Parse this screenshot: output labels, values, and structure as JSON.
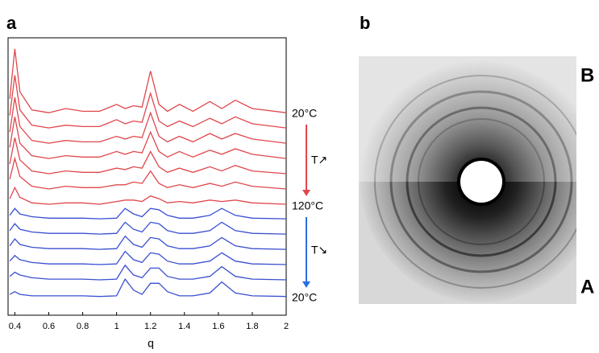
{
  "chart_data": {
    "type": "line",
    "panel_label": "a",
    "x_label": "q",
    "x": [
      0.37,
      0.4,
      0.43,
      0.5,
      0.6,
      0.7,
      0.8,
      0.9,
      1.0,
      1.05,
      1.1,
      1.15,
      1.2,
      1.25,
      1.3,
      1.37,
      1.45,
      1.55,
      1.62,
      1.7,
      1.8,
      2.0
    ],
    "xlim": [
      0.36,
      2.0
    ],
    "xticks": [
      0.4,
      0.6,
      0.8,
      1,
      1.2,
      1.4,
      1.6,
      1.8,
      2
    ],
    "ylim": [
      0,
      20
    ],
    "series": [
      {
        "color": "#e0474c",
        "values": [
          15.6,
          19.2,
          16.1,
          14.8,
          14.6,
          14.9,
          14.7,
          14.7,
          15.2,
          14.9,
          15.1,
          15.0,
          17.6,
          15.2,
          14.7,
          15.2,
          14.7,
          15.4,
          14.9,
          15.5,
          14.9,
          14.6
        ]
      },
      {
        "color": "#e0474c",
        "values": [
          14.4,
          17.3,
          14.8,
          13.7,
          13.5,
          13.7,
          13.6,
          13.6,
          14.1,
          13.8,
          14.0,
          13.9,
          16.0,
          14.0,
          13.6,
          14.0,
          13.6,
          14.2,
          13.8,
          14.3,
          13.8,
          13.5
        ]
      },
      {
        "color": "#e0474c",
        "values": [
          13.2,
          15.7,
          13.6,
          12.6,
          12.4,
          12.6,
          12.5,
          12.5,
          12.9,
          12.7,
          12.9,
          12.8,
          14.6,
          12.9,
          12.5,
          12.9,
          12.5,
          13.1,
          12.7,
          13.1,
          12.7,
          12.4
        ]
      },
      {
        "color": "#e0474c",
        "values": [
          12.1,
          14.3,
          12.4,
          11.5,
          11.3,
          11.5,
          11.4,
          11.4,
          11.8,
          11.6,
          11.8,
          11.7,
          13.2,
          11.8,
          11.4,
          11.8,
          11.4,
          11.9,
          11.6,
          12.0,
          11.6,
          11.3
        ]
      },
      {
        "color": "#e0474c",
        "values": [
          10.9,
          12.8,
          11.2,
          10.4,
          10.2,
          10.4,
          10.3,
          10.3,
          10.6,
          10.5,
          10.7,
          10.6,
          11.8,
          10.7,
          10.3,
          10.6,
          10.3,
          10.7,
          10.4,
          10.8,
          10.4,
          10.2
        ]
      },
      {
        "color": "#e0474c",
        "values": [
          9.8,
          11.3,
          10.0,
          9.3,
          9.1,
          9.3,
          9.2,
          9.2,
          9.4,
          9.4,
          9.6,
          9.5,
          10.4,
          9.5,
          9.2,
          9.4,
          9.2,
          9.5,
          9.3,
          9.6,
          9.3,
          9.1
        ]
      },
      {
        "color": "#e0474c",
        "values": [
          8.4,
          9.2,
          8.5,
          8.1,
          8.0,
          8.1,
          8.1,
          8.0,
          8.2,
          8.3,
          8.3,
          8.2,
          8.6,
          8.4,
          8.1,
          8.2,
          8.1,
          8.3,
          8.2,
          8.3,
          8.1,
          8.0
        ]
      },
      {
        "color": "#3a4fd0",
        "values": [
          7.2,
          7.7,
          7.3,
          7.1,
          7.0,
          7.0,
          7.0,
          6.95,
          7.0,
          7.7,
          7.3,
          7.1,
          7.7,
          7.6,
          7.2,
          7.0,
          7.0,
          7.2,
          7.7,
          7.2,
          7.0,
          6.95
        ]
      },
      {
        "color": "#3a4fd0",
        "values": [
          6.1,
          6.6,
          6.2,
          6.0,
          5.9,
          5.9,
          5.9,
          5.85,
          5.9,
          6.7,
          6.2,
          6.0,
          6.7,
          6.6,
          6.1,
          5.9,
          5.9,
          6.1,
          6.7,
          6.1,
          5.9,
          5.85
        ]
      },
      {
        "color": "#3a4fd0",
        "values": [
          5.0,
          5.5,
          5.1,
          4.9,
          4.8,
          4.8,
          4.8,
          4.75,
          4.8,
          5.7,
          5.1,
          4.9,
          5.6,
          5.5,
          5.0,
          4.8,
          4.8,
          5.0,
          5.6,
          5.0,
          4.8,
          4.75
        ]
      },
      {
        "color": "#3a4fd0",
        "values": [
          3.9,
          4.3,
          4.0,
          3.8,
          3.7,
          3.7,
          3.7,
          3.65,
          3.7,
          4.6,
          4.0,
          3.8,
          4.5,
          4.4,
          3.9,
          3.7,
          3.7,
          3.9,
          4.5,
          3.9,
          3.7,
          3.65
        ]
      },
      {
        "color": "#3a4fd0",
        "values": [
          2.8,
          3.1,
          2.9,
          2.7,
          2.6,
          2.6,
          2.6,
          2.55,
          2.6,
          3.6,
          2.9,
          2.7,
          3.4,
          3.4,
          2.8,
          2.6,
          2.6,
          2.8,
          3.5,
          2.8,
          2.6,
          2.55
        ]
      },
      {
        "color": "#3a4fd0",
        "values": [
          1.5,
          1.7,
          1.5,
          1.4,
          1.4,
          1.4,
          1.4,
          1.35,
          1.4,
          2.6,
          1.8,
          1.5,
          2.3,
          2.3,
          1.7,
          1.4,
          1.4,
          1.6,
          2.4,
          1.6,
          1.4,
          1.35
        ]
      }
    ],
    "annotations": [
      "20°C",
      "T↗",
      "120°C",
      "T↘",
      "20°C"
    ],
    "arrow_colors": [
      "#e0474c",
      "#2a6fe0"
    ]
  },
  "image": {
    "panel_label": "b",
    "labels": {
      "top": "B",
      "bottom": "A"
    }
  }
}
